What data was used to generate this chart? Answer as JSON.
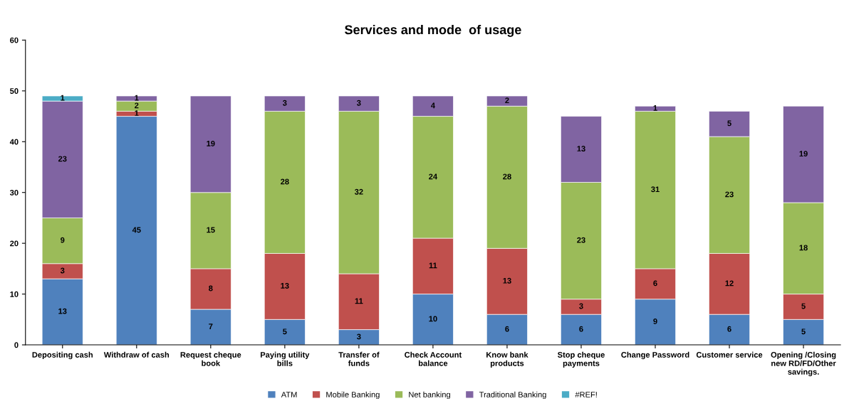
{
  "chart_data": {
    "type": "bar",
    "title": "Services and mode  of usage",
    "stacked": true,
    "data_labels": true,
    "legend": "bottom",
    "grid": false,
    "categories": [
      "Depositing cash",
      "Withdraw of cash",
      "Request cheque book",
      "Paying utility bills",
      "Transfer of funds",
      "Check Account balance",
      "Know bank products",
      "Stop cheque payments",
      "Change Password",
      "Customer service",
      "Opening /Closing new RD/FD/Other savings."
    ],
    "ylim": [
      0,
      60
    ],
    "yticks": [
      0,
      10,
      20,
      30,
      40,
      50,
      60
    ],
    "series": [
      {
        "name": "ATM",
        "color": "#4f81bd",
        "values": [
          13,
          45,
          7,
          5,
          3,
          10,
          6,
          6,
          9,
          6,
          5
        ]
      },
      {
        "name": "Mobile Banking",
        "color": "#c0504d",
        "values": [
          3,
          1,
          8,
          13,
          11,
          11,
          13,
          3,
          6,
          12,
          5
        ]
      },
      {
        "name": "Net banking",
        "color": "#9bbb59",
        "values": [
          9,
          2,
          15,
          28,
          32,
          24,
          28,
          23,
          31,
          23,
          18
        ]
      },
      {
        "name": "Traditional Banking",
        "color": "#8064a2",
        "values": [
          23,
          1,
          19,
          3,
          3,
          4,
          2,
          13,
          1,
          5,
          19
        ]
      },
      {
        "name": "#REF!",
        "color": "#4bacc6",
        "values": [
          1,
          null,
          null,
          null,
          null,
          null,
          null,
          null,
          null,
          null,
          null
        ]
      }
    ]
  }
}
